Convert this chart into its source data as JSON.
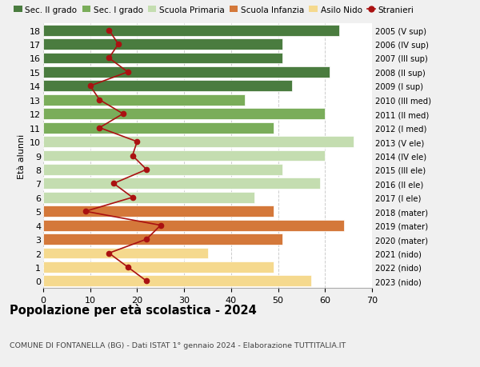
{
  "ages": [
    18,
    17,
    16,
    15,
    14,
    13,
    12,
    11,
    10,
    9,
    8,
    7,
    6,
    5,
    4,
    3,
    2,
    1,
    0
  ],
  "years_labels": [
    "2005 (V sup)",
    "2006 (IV sup)",
    "2007 (III sup)",
    "2008 (II sup)",
    "2009 (I sup)",
    "2010 (III med)",
    "2011 (II med)",
    "2012 (I med)",
    "2013 (V ele)",
    "2014 (IV ele)",
    "2015 (III ele)",
    "2016 (II ele)",
    "2017 (I ele)",
    "2018 (mater)",
    "2019 (mater)",
    "2020 (mater)",
    "2021 (nido)",
    "2022 (nido)",
    "2023 (nido)"
  ],
  "bar_values": [
    63,
    51,
    51,
    61,
    53,
    43,
    60,
    49,
    66,
    60,
    51,
    59,
    45,
    49,
    64,
    51,
    35,
    49,
    57
  ],
  "bar_colors": [
    "#4a7c3f",
    "#4a7c3f",
    "#4a7c3f",
    "#4a7c3f",
    "#4a7c3f",
    "#7aad5a",
    "#7aad5a",
    "#7aad5a",
    "#c4ddb0",
    "#c4ddb0",
    "#c4ddb0",
    "#c4ddb0",
    "#c4ddb0",
    "#d4783a",
    "#d4783a",
    "#d4783a",
    "#f5d98e",
    "#f5d98e",
    "#f5d98e"
  ],
  "stranieri_values": [
    14,
    16,
    14,
    18,
    10,
    12,
    17,
    12,
    20,
    19,
    22,
    15,
    19,
    9,
    25,
    22,
    14,
    18,
    22
  ],
  "legend_labels": [
    "Sec. II grado",
    "Sec. I grado",
    "Scuola Primaria",
    "Scuola Infanzia",
    "Asilo Nido",
    "Stranieri"
  ],
  "legend_colors": [
    "#4a7c3f",
    "#7aad5a",
    "#c4ddb0",
    "#d4783a",
    "#f5d98e",
    "#cc1111"
  ],
  "title": "Popolazione per età scolastica - 2024",
  "subtitle": "COMUNE DI FONTANELLA (BG) - Dati ISTAT 1° gennaio 2024 - Elaborazione TUTTITALIA.IT",
  "ylabel_left": "Età alunni",
  "xlim": [
    0,
    70
  ],
  "xticks": [
    0,
    10,
    20,
    30,
    40,
    50,
    60,
    70
  ],
  "bg_color": "#f0f0f0",
  "plot_bg_color": "#ffffff",
  "stranieri_color": "#aa1111"
}
